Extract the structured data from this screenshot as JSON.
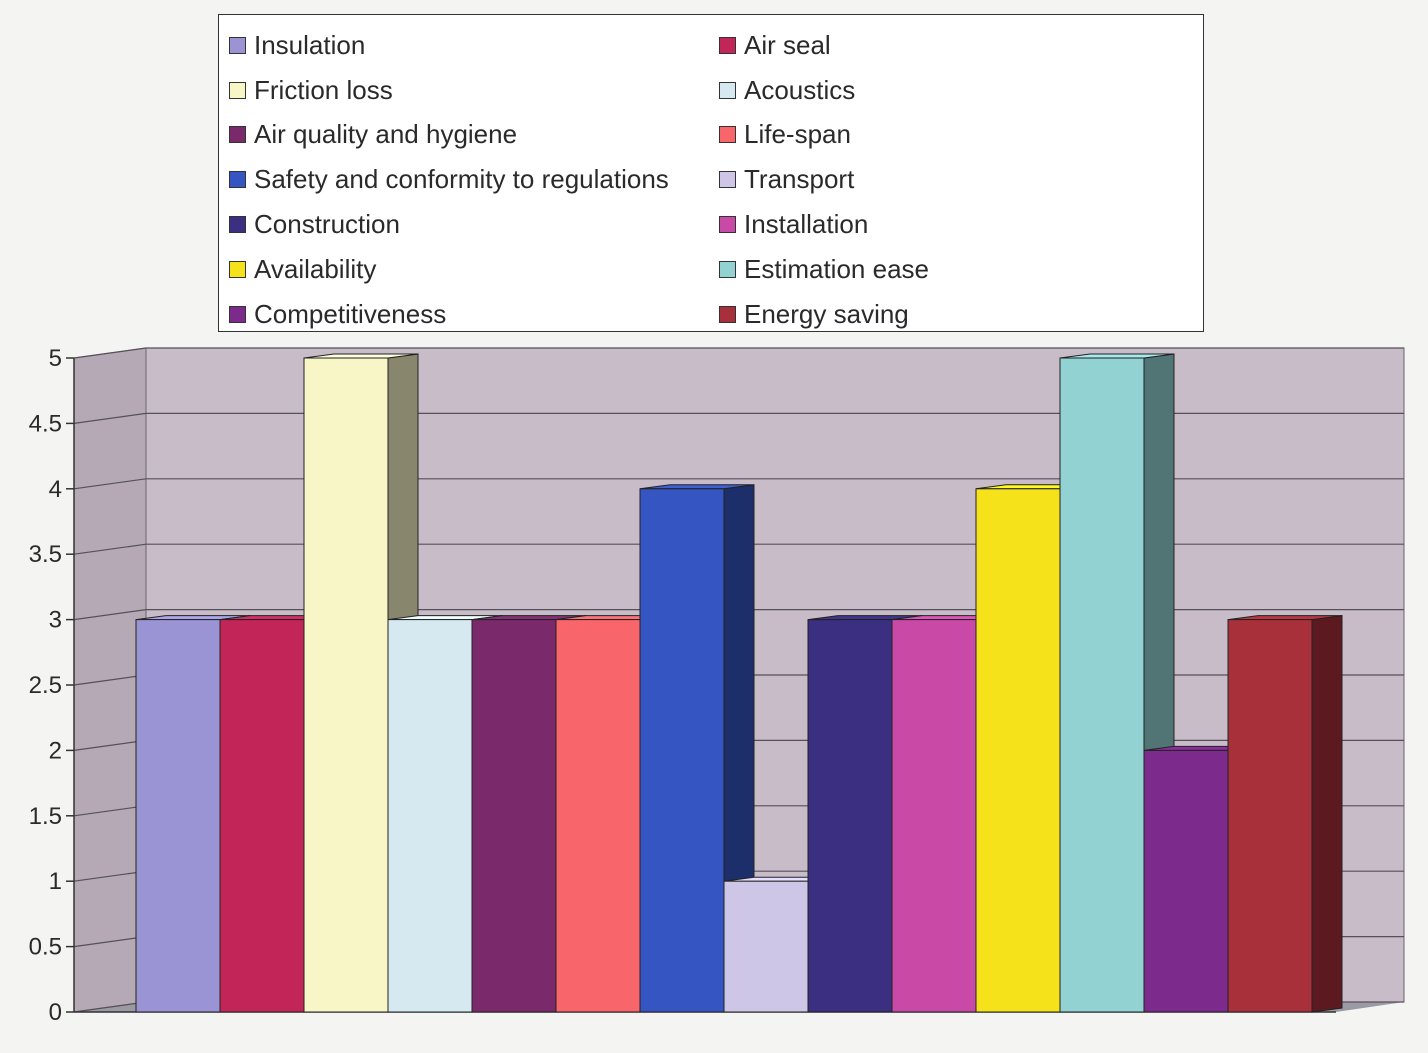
{
  "chart_data": {
    "type": "bar",
    "title": "",
    "xlabel": "",
    "ylabel": "",
    "ylim": [
      0,
      5
    ],
    "yticks": [
      "0",
      "0.5",
      "1",
      "1.5",
      "2",
      "2.5",
      "3",
      "3.5",
      "4",
      "4.5",
      "5"
    ],
    "grid": true,
    "legend_position": "top",
    "series": [
      {
        "name": "Insulation",
        "value": 3,
        "color": "#9a93d4"
      },
      {
        "name": "Air seal",
        "value": 3,
        "color": "#c22659"
      },
      {
        "name": "Friction loss",
        "value": 5,
        "color": "#f8f6c6"
      },
      {
        "name": "Acoustics",
        "value": 3,
        "color": "#d6e8f0"
      },
      {
        "name": "Air quality and hygiene",
        "value": 3,
        "color": "#7a2a6a"
      },
      {
        "name": "Life-span",
        "value": 3,
        "color": "#f8656a"
      },
      {
        "name": "Safety and conformity to regulations",
        "value": 4,
        "color": "#3556c2"
      },
      {
        "name": "Transport",
        "value": 1,
        "color": "#cdc6e6"
      },
      {
        "name": "Construction",
        "value": 3,
        "color": "#3a2f80"
      },
      {
        "name": "Installation",
        "value": 3,
        "color": "#c84aa6"
      },
      {
        "name": "Availability",
        "value": 4,
        "color": "#f6e21a"
      },
      {
        "name": "Estimation ease",
        "value": 5,
        "color": "#93d2d2"
      },
      {
        "name": "Competitiveness",
        "value": 2,
        "color": "#7c2a8c"
      },
      {
        "name": "Energy saving",
        "value": 3,
        "color": "#a8303a"
      }
    ]
  },
  "legend": {
    "columns": [
      [
        "Insulation",
        "Friction loss",
        "Air quality and hygiene",
        "Safety and conformity to regulations",
        "Construction",
        "Availability",
        "Competitiveness"
      ],
      [
        "Air seal",
        "Acoustics",
        "Life-span",
        "Transport",
        "Installation",
        "Estimation ease",
        "Energy saving"
      ]
    ]
  },
  "colors": {
    "plot_wall": "#c8bcc9",
    "plot_floor": "#9b9aa4",
    "gridline": "#55505a",
    "page_background": "#f4f4f2"
  }
}
